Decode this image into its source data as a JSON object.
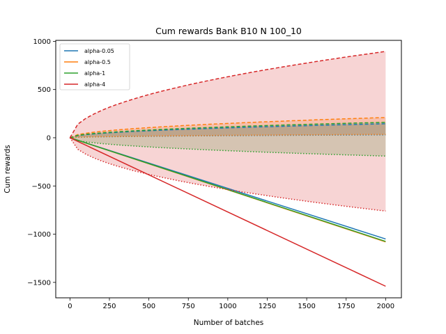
{
  "chart_data": {
    "type": "line",
    "title": "Cum rewards Bank B10 N 100_10",
    "xlabel": "Number of batches",
    "ylabel": "Cum rewards",
    "xlim": [
      -90,
      2100
    ],
    "ylim": [
      -1660,
      1010
    ],
    "xticks": [
      0,
      250,
      500,
      750,
      1000,
      1250,
      1500,
      1750,
      2000
    ],
    "yticks": [
      1000,
      500,
      0,
      -500,
      -1000,
      -1500
    ],
    "xtick_labels": [
      "0",
      "250",
      "500",
      "750",
      "1000",
      "1250",
      "1500",
      "1750",
      "2000"
    ],
    "ytick_labels": [
      "1000",
      "500",
      "0",
      "−500",
      "−1000",
      "−1500"
    ],
    "grid": false,
    "legend_position": "upper-left",
    "series": [
      {
        "name": "alpha-0.05",
        "color": "#1f77b4",
        "mean_end": -1050,
        "upper_end": 145,
        "lower_end": 30,
        "fill_opacity": 0.2
      },
      {
        "name": "alpha-0.5",
        "color": "#ff7f0e",
        "mean_end": -1080,
        "upper_end": 210,
        "lower_end": 35,
        "fill_opacity": 0.2
      },
      {
        "name": "alpha-1",
        "color": "#2ca02c",
        "mean_end": -1075,
        "upper_end": 160,
        "lower_end": -190,
        "fill_opacity": 0.2
      },
      {
        "name": "alpha-4",
        "color": "#d62728",
        "mean_end": -1540,
        "upper_end": 895,
        "lower_end": -760,
        "fill_opacity": 0.2
      }
    ],
    "x_end": 2000
  }
}
